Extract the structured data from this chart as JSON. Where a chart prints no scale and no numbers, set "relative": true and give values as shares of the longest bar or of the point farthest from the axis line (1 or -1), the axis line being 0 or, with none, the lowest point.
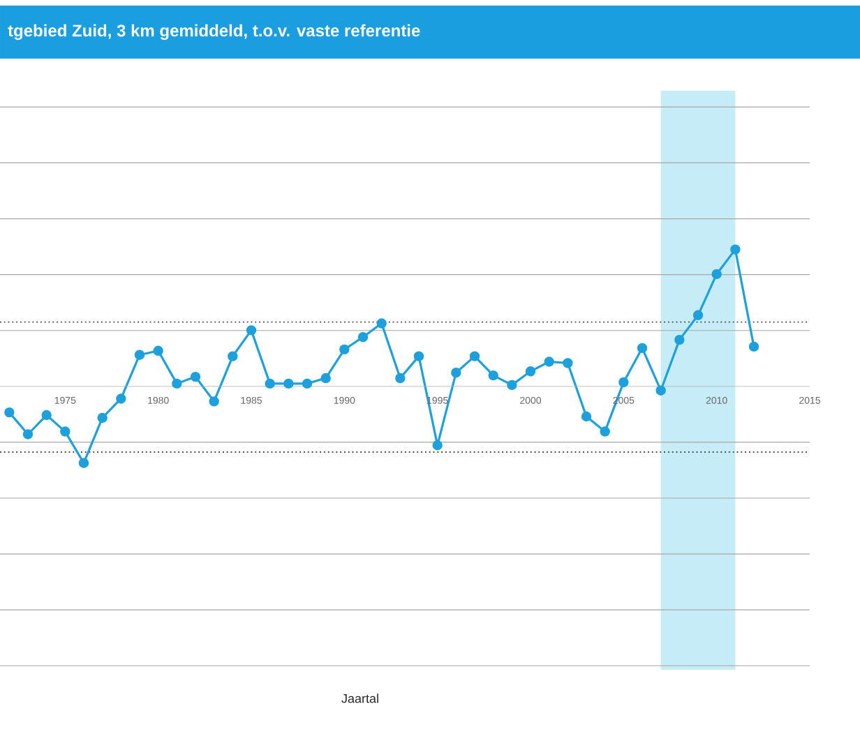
{
  "chart_data": {
    "type": "line",
    "title": "tgebied Zuid, 3 km gemiddeld, t.o.v. vaste referentie",
    "annotations": [
      "Jaartal"
    ],
    "relative": true,
    "x": [
      1972,
      1973,
      1974,
      1975,
      1976,
      1977,
      1978,
      1979,
      1980,
      1981,
      1982,
      1983,
      1984,
      1985,
      1986,
      1987,
      1988,
      1989,
      1990,
      1991,
      1992,
      1993,
      1994,
      1995,
      1996,
      1997,
      1998,
      1999,
      2000,
      2001,
      2002,
      2003,
      2004,
      2005,
      2006,
      2007,
      2008,
      2009,
      2010,
      2011,
      2012
    ],
    "values": [
      -0.19,
      -0.35,
      -0.21,
      -0.33,
      -0.56,
      -0.23,
      -0.09,
      0.23,
      0.26,
      0.02,
      0.07,
      -0.11,
      0.22,
      0.41,
      0.02,
      0.02,
      0.02,
      0.06,
      0.27,
      0.36,
      0.46,
      0.06,
      0.22,
      -0.43,
      0.1,
      0.22,
      0.08,
      0.01,
      0.11,
      0.18,
      0.17,
      -0.22,
      -0.33,
      0.03,
      0.28,
      -0.03,
      0.34,
      0.52,
      0.82,
      1,
      0.29
    ],
    "color": "#1ea0dc",
    "marker": "circle",
    "line_style": "solid",
    "grid": "y",
    "tick_labels": "x",
    "xlim": [
      1971.5,
      2015
    ],
    "xticks": [
      1975,
      1980,
      1985,
      1990,
      1995,
      2000,
      2005,
      2010,
      2015
    ],
    "ref_lines": [
      {
        "axis": "y",
        "value": 0.47,
        "line_style": "dotted",
        "color": "#444444"
      },
      {
        "axis": "y",
        "value": -0.48,
        "line_style": "dotted",
        "color": "#444444"
      }
    ],
    "bands": [
      {
        "axis": "x",
        "from": 2007,
        "to": 2011,
        "color": "#c6ecf8"
      }
    ]
  }
}
